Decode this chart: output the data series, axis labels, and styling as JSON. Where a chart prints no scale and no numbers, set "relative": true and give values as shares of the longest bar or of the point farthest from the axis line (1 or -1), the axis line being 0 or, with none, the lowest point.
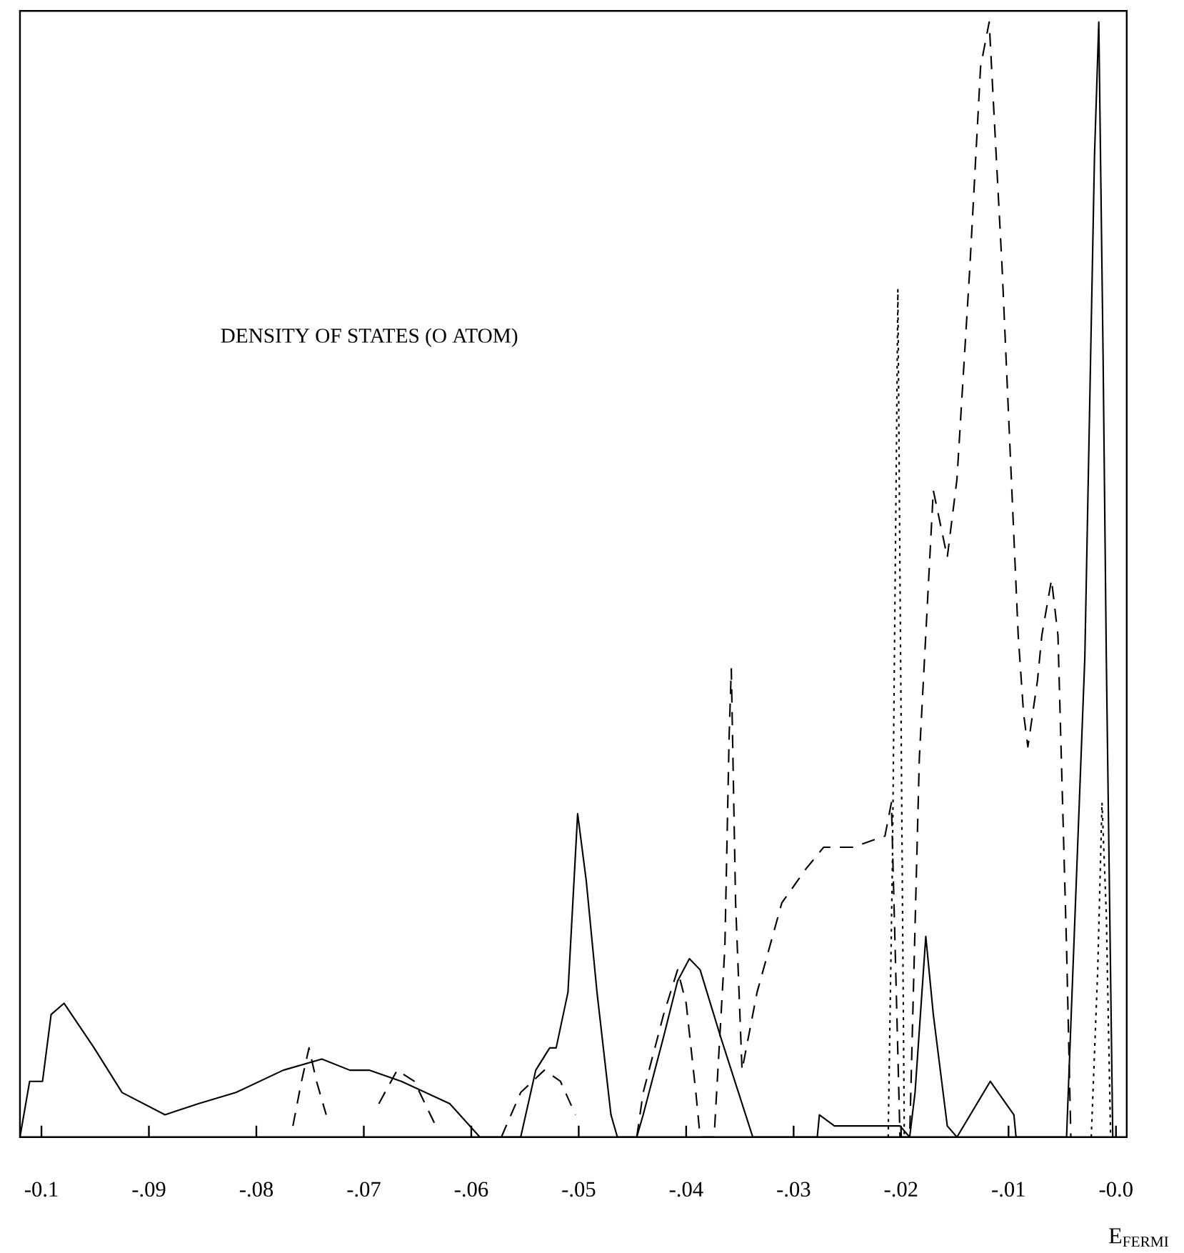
{
  "chart_data": {
    "type": "line",
    "title": "DENSITY OF STATES (O ATOM)",
    "xlabel": "E$_{FERMI}$",
    "relative": true,
    "grid": false,
    "marker": "none",
    "xlim": [
      -0.102,
      0.001
    ],
    "xticks": [
      {
        "value": -0.1,
        "label": "-0.1"
      },
      {
        "value": -0.09,
        "label": "-.09"
      },
      {
        "value": -0.08,
        "label": "-.08"
      },
      {
        "value": -0.07,
        "label": "-.07"
      },
      {
        "value": -0.06,
        "label": "-.06"
      },
      {
        "value": -0.05,
        "label": "-.05"
      },
      {
        "value": -0.04,
        "label": "-.04"
      },
      {
        "value": -0.03,
        "label": "-.03"
      },
      {
        "value": -0.02,
        "label": "-.02"
      },
      {
        "value": -0.01,
        "label": "-.01"
      },
      {
        "value": 0.0,
        "label": "-0.0"
      }
    ],
    "series": [
      {
        "color": "#000000",
        "line_style": "solid",
        "x": [
          -0.102,
          -0.1011,
          -0.0999,
          -0.0991,
          -0.0979,
          -0.0951,
          -0.0925,
          -0.0885,
          -0.0854,
          -0.0819,
          -0.0775,
          -0.0739,
          -0.0713,
          -0.0695,
          -0.0665,
          -0.062,
          -0.0592,
          -0.0554,
          -0.054,
          -0.0527,
          -0.0521,
          -0.051,
          -0.0501,
          -0.0493,
          -0.0483,
          -0.047,
          -0.0464,
          -0.0446,
          -0.044,
          -0.0421,
          -0.0408,
          -0.0397,
          -0.0387,
          -0.0368,
          -0.0338,
          -0.0278,
          -0.0276,
          -0.0262,
          -0.0201,
          -0.0192,
          -0.0187,
          -0.0177,
          -0.017,
          -0.0157,
          -0.0148,
          -0.0117,
          -0.0095,
          -0.0093,
          -0.0046,
          -0.0029,
          -0.002,
          -0.0016,
          -0.0012,
          -0.0009,
          -0.0003
        ],
        "values": [
          0,
          0.05,
          0.05,
          0.11,
          0.12,
          0.08,
          0.04,
          0.02,
          0.03,
          0.04,
          0.06,
          0.07,
          0.06,
          0.06,
          0.05,
          0.03,
          0,
          0,
          0.06,
          0.08,
          0.08,
          0.13,
          0.29,
          0.23,
          0.13,
          0.02,
          0,
          0,
          0.02,
          0.09,
          0.14,
          0.16,
          0.15,
          0.09,
          0,
          0,
          0.02,
          0.01,
          0.01,
          0,
          0.04,
          0.18,
          0.11,
          0.01,
          0,
          0.05,
          0.02,
          0,
          0,
          0.43,
          0.88,
          1,
          0.7,
          0.43,
          0
        ]
      },
      {
        "color": "#000000",
        "line_style": "dashed",
        "x": [
          -0.0766,
          -0.0758,
          -0.0751,
          -0.0744,
          -0.0735,
          -0.071,
          -0.0686,
          -0.0669,
          -0.0653,
          -0.0633,
          -0.06,
          -0.0572,
          -0.0554,
          -0.0532,
          -0.0517,
          -0.0503,
          -0.047,
          -0.0446,
          -0.044,
          -0.0421,
          -0.0408,
          -0.04,
          -0.0391,
          -0.0387,
          -0.0374,
          -0.0364,
          -0.036,
          -0.0358,
          -0.0354,
          -0.0348,
          -0.0334,
          -0.0311,
          -0.0289,
          -0.0272,
          -0.0245,
          -0.0215,
          -0.0209,
          -0.0201,
          -0.0192,
          -0.0183,
          -0.017,
          -0.0157,
          -0.0148,
          -0.0136,
          -0.0126,
          -0.0118,
          -0.0106,
          -0.0091,
          -0.0086,
          -0.0082,
          -0.0073,
          -0.0069,
          -0.006,
          -0.0054,
          -0.0046,
          -0.0042
        ],
        "values": [
          0.01,
          0.05,
          0.08,
          0.05,
          0.02,
          null,
          0.03,
          0.06,
          0.05,
          0.01,
          null,
          0,
          0.04,
          0.06,
          0.05,
          0.02,
          null,
          0,
          0.04,
          0.11,
          0.15,
          0.12,
          0.04,
          0,
          0,
          0.17,
          0.36,
          0.42,
          0.21,
          0.06,
          0.13,
          0.21,
          0.24,
          0.26,
          0.26,
          0.27,
          0.3,
          0,
          0,
          0.34,
          0.58,
          0.52,
          0.59,
          0.78,
          0.96,
          1,
          0.78,
          0.45,
          0.38,
          0.35,
          0.41,
          0.45,
          0.5,
          0.45,
          0.17,
          0
        ]
      },
      {
        "color": "#000000",
        "line_style": "dotted",
        "x": [
          -0.0212,
          -0.0208,
          -0.0204,
          -0.0203,
          -0.0201,
          -0.0197,
          -0.01,
          -0.0023,
          -0.0017,
          -0.0013,
          -0.0009,
          -0.0005
        ],
        "values": [
          0,
          0.25,
          0.65,
          0.76,
          0.5,
          0,
          null,
          0,
          0.15,
          0.3,
          0.2,
          0
        ]
      }
    ]
  }
}
